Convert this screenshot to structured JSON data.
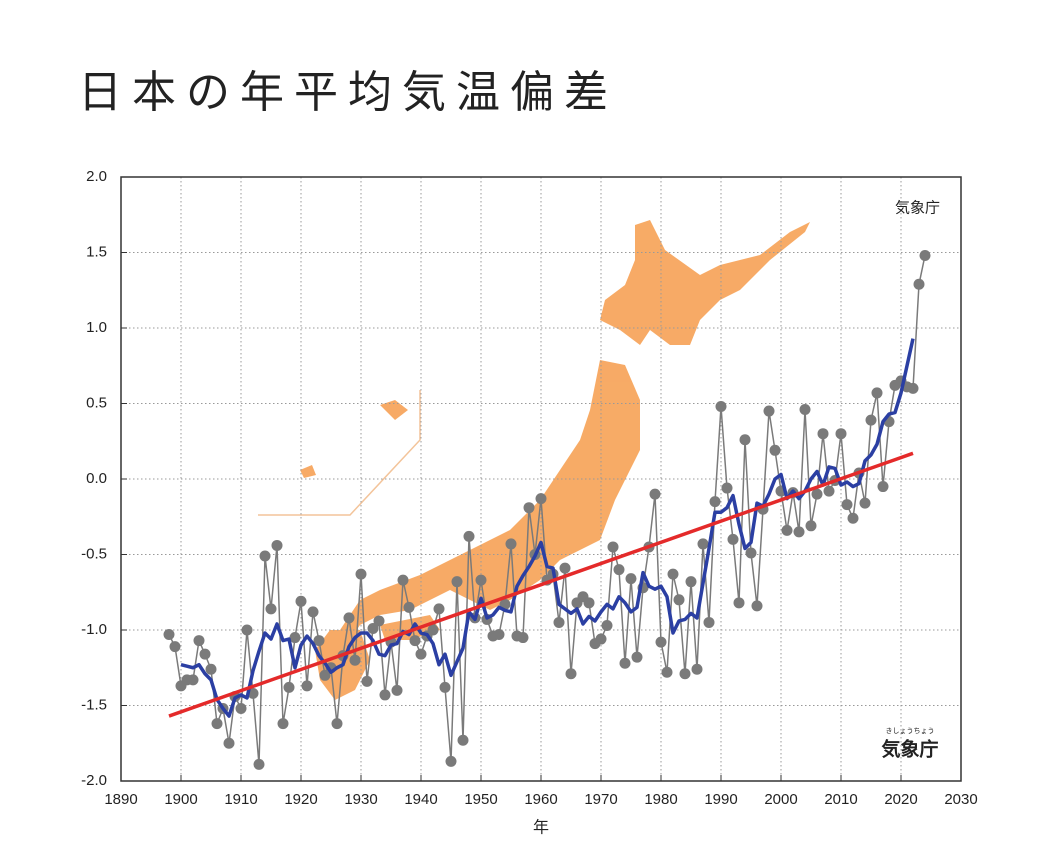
{
  "chart_data": {
    "type": "line",
    "title": "日本の年平均気温偏差",
    "x_label": "年",
    "source": "気象庁",
    "logo_ruby": "きしょうちょう",
    "logo": "気象庁",
    "xlim": [
      1890,
      2030
    ],
    "xticks": [
      1890,
      1900,
      1910,
      1920,
      1930,
      1940,
      1950,
      1960,
      1970,
      1980,
      1990,
      2000,
      2010,
      2020,
      2030
    ],
    "ylim": [
      -2,
      2
    ],
    "yticks": [
      {
        "value": -2,
        "label": "-2.0"
      },
      {
        "value": -1.5,
        "label": "-1.5"
      },
      {
        "value": -1,
        "label": "-1.0"
      },
      -0.5,
      {
        "value": 0,
        "label": "0.0"
      },
      0.5,
      {
        "value": 1,
        "label": "1.0"
      },
      1.5,
      {
        "value": 2,
        "label": "2.0"
      }
    ],
    "grid": true,
    "x": [
      1898,
      1899,
      1900,
      1901,
      1902,
      1903,
      1904,
      1905,
      1906,
      1907,
      1908,
      1909,
      1910,
      1911,
      1912,
      1913,
      1914,
      1915,
      1916,
      1917,
      1918,
      1919,
      1920,
      1921,
      1922,
      1923,
      1924,
      1925,
      1926,
      1927,
      1928,
      1929,
      1930,
      1931,
      1932,
      1933,
      1934,
      1935,
      1936,
      1937,
      1938,
      1939,
      1940,
      1941,
      1942,
      1943,
      1944,
      1945,
      1946,
      1947,
      1948,
      1949,
      1950,
      1951,
      1952,
      1953,
      1954,
      1955,
      1956,
      1957,
      1958,
      1959,
      1960,
      1961,
      1962,
      1963,
      1964,
      1965,
      1966,
      1967,
      1968,
      1969,
      1970,
      1971,
      1972,
      1973,
      1974,
      1975,
      1976,
      1977,
      1978,
      1979,
      1980,
      1981,
      1982,
      1983,
      1984,
      1985,
      1986,
      1987,
      1988,
      1989,
      1990,
      1991,
      1992,
      1993,
      1994,
      1995,
      1996,
      1997,
      1998,
      1999,
      2000,
      2001,
      2002,
      2003,
      2004,
      2005,
      2006,
      2007,
      2008,
      2009,
      2010,
      2011,
      2012,
      2013,
      2014,
      2015,
      2016,
      2017,
      2018,
      2019,
      2020,
      2021,
      2022,
      2023,
      2024
    ],
    "series": [
      {
        "color": "#7a7a7a",
        "markers": true,
        "values": [
          -1.03,
          -1.11,
          -1.37,
          -1.33,
          -1.33,
          -1.07,
          -1.16,
          -1.26,
          -1.62,
          -1.52,
          -1.75,
          -1.44,
          -1.52,
          -1.0,
          -1.42,
          -1.89,
          -0.51,
          -0.86,
          -0.44,
          -1.62,
          -1.38,
          -1.05,
          -0.81,
          -1.37,
          -0.88,
          -1.07,
          -1.3,
          -1.25,
          -1.62,
          -1.17,
          -0.92,
          -1.2,
          -0.63,
          -1.34,
          -0.99,
          -0.94,
          -1.43,
          -1.08,
          -1.4,
          -0.67,
          -0.85,
          -1.07,
          -1.16,
          -1.04,
          -1.0,
          -0.86,
          -1.38,
          -1.87,
          -0.68,
          -1.73,
          -0.38,
          -0.92,
          -0.67,
          -0.93,
          -1.04,
          -1.03,
          -0.83,
          -0.43,
          -1.04,
          -1.05,
          -0.19,
          -0.5,
          -0.13,
          -0.67,
          -0.63,
          -0.95,
          -0.59,
          -1.29,
          -0.82,
          -0.78,
          -0.82,
          -1.09,
          -1.06,
          -0.97,
          -0.45,
          -0.6,
          -1.22,
          -0.66,
          -1.18,
          -0.72,
          -0.45,
          -0.1,
          -1.08,
          -1.28,
          -0.63,
          -0.8,
          -1.29,
          -0.68,
          -1.26,
          -0.43,
          -0.95,
          -0.15,
          0.48,
          -0.06,
          -0.4,
          -0.82,
          0.26,
          -0.49,
          -0.84,
          -0.2,
          0.45,
          0.19,
          -0.08,
          -0.34,
          -0.09,
          -0.35,
          0.46,
          -0.31,
          -0.1,
          0.3,
          -0.08,
          -0.01,
          0.3,
          -0.17,
          -0.26,
          0.04,
          -0.16,
          0.39,
          0.57,
          -0.05,
          0.38,
          0.62,
          0.65,
          0.61,
          0.6,
          1.29,
          1.48
        ]
      },
      {
        "color": "#2b3fa3",
        "markers": false,
        "values": [
          null,
          null,
          -1.23,
          -1.24,
          -1.25,
          -1.23,
          -1.29,
          -1.33,
          -1.46,
          -1.52,
          -1.57,
          -1.45,
          -1.43,
          -1.45,
          -1.27,
          -1.14,
          -1.02,
          -1.06,
          -0.96,
          -1.07,
          -1.06,
          -1.25,
          -1.1,
          -1.04,
          -1.09,
          -1.17,
          -1.22,
          -1.28,
          -1.25,
          -1.23,
          -1.11,
          -1.05,
          -1.02,
          -1.02,
          -1.07,
          -1.16,
          -1.17,
          -1.1,
          -1.09,
          -1.01,
          -1.03,
          -0.96,
          -1.02,
          -1.03,
          -1.09,
          -1.23,
          -1.16,
          -1.3,
          -1.21,
          -1.12,
          -0.88,
          -0.93,
          -0.79,
          -0.92,
          -0.9,
          -0.85,
          -0.87,
          -0.88,
          -0.71,
          -0.64,
          -0.58,
          -0.51,
          -0.42,
          -0.58,
          -0.59,
          -0.83,
          -0.86,
          -0.89,
          -0.86,
          -0.96,
          -0.91,
          -0.94,
          -0.88,
          -0.83,
          -0.86,
          -0.78,
          -0.82,
          -0.88,
          -0.85,
          -0.62,
          -0.71,
          -0.73,
          -0.71,
          -0.78,
          -1.02,
          -0.94,
          -0.93,
          -0.89,
          -0.92,
          -0.69,
          -0.46,
          -0.22,
          -0.22,
          -0.19,
          -0.11,
          -0.3,
          -0.46,
          -0.42,
          -0.16,
          -0.18,
          -0.1,
          0.0,
          0.03,
          -0.13,
          -0.08,
          -0.13,
          -0.08,
          0.0,
          0.05,
          -0.04,
          0.08,
          0.07,
          -0.04,
          -0.02,
          -0.05,
          -0.03,
          0.12,
          0.16,
          0.23,
          0.38,
          0.43,
          0.44,
          0.57,
          0.75,
          0.93,
          null,
          null
        ]
      }
    ],
    "trend_line": {
      "color": "#e42a2a",
      "x": [
        1898,
        2022
      ],
      "values": [
        -1.57,
        0.17
      ]
    }
  }
}
